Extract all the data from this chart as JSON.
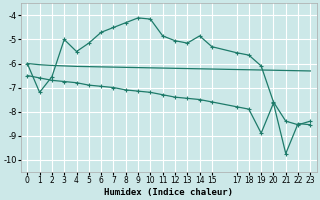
{
  "xlabel": "Humidex (Indice chaleur)",
  "background_color": "#cce8e8",
  "grid_color": "#ffffff",
  "line_color": "#1e7b6a",
  "xlim": [
    -0.5,
    23.5
  ],
  "ylim": [
    -10.5,
    -3.5
  ],
  "yticks": [
    -10,
    -9,
    -8,
    -7,
    -6,
    -5,
    -4
  ],
  "xticks": [
    0,
    1,
    2,
    3,
    4,
    5,
    6,
    7,
    8,
    9,
    10,
    11,
    12,
    13,
    14,
    15,
    17,
    18,
    19,
    20,
    21,
    22,
    23
  ],
  "line1_x": [
    0,
    1,
    2,
    3,
    4,
    5,
    6,
    7,
    8,
    9,
    10,
    11,
    12,
    13,
    14,
    15,
    17,
    18,
    19,
    20,
    21,
    22,
    23
  ],
  "line1_y": [
    -6.0,
    -7.2,
    -6.55,
    -5.0,
    -5.5,
    -5.15,
    -4.7,
    -4.5,
    -4.3,
    -4.1,
    -4.15,
    -4.85,
    -5.05,
    -5.15,
    -4.85,
    -5.3,
    -5.55,
    -5.65,
    -6.1,
    -7.6,
    -8.4,
    -8.55,
    -8.4
  ],
  "line2_x": [
    0,
    1,
    2,
    3,
    4,
    5,
    6,
    7,
    8,
    9,
    10,
    11,
    12,
    13,
    14,
    15,
    17,
    18,
    19,
    20,
    21,
    22,
    23
  ],
  "line2_y": [
    -6.0,
    -6.05,
    -6.08,
    -6.1,
    -6.12,
    -6.13,
    -6.14,
    -6.15,
    -6.16,
    -6.17,
    -6.18,
    -6.19,
    -6.2,
    -6.21,
    -6.22,
    -6.23,
    -6.25,
    -6.26,
    -6.27,
    -6.28,
    -6.29,
    -6.3,
    -6.31
  ],
  "line3_x": [
    0,
    1,
    2,
    3,
    4,
    5,
    6,
    7,
    8,
    9,
    10,
    11,
    12,
    13,
    14,
    15,
    17,
    18,
    19,
    20,
    21,
    22,
    23
  ],
  "line3_y": [
    -6.5,
    -6.6,
    -6.7,
    -6.75,
    -6.8,
    -6.9,
    -6.95,
    -7.0,
    -7.1,
    -7.15,
    -7.2,
    -7.3,
    -7.4,
    -7.45,
    -7.5,
    -7.6,
    -7.8,
    -7.9,
    -8.9,
    -7.65,
    -9.75,
    -8.5,
    -8.55
  ]
}
